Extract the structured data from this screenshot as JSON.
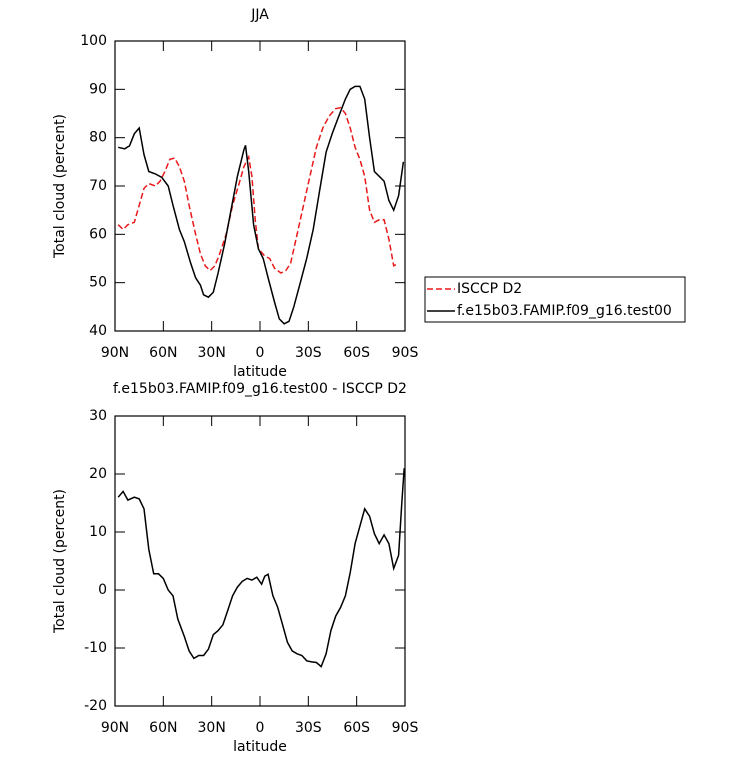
{
  "chart_data": [
    {
      "type": "line",
      "title": "JJA",
      "x_label": "latitude",
      "y_label": "Total cloud (percent)",
      "xlim": [
        90,
        -90
      ],
      "ylim": [
        40,
        100
      ],
      "xticks": [
        {
          "value": 90,
          "label": "90N"
        },
        {
          "value": 60,
          "label": "60N"
        },
        {
          "value": 30,
          "label": "30N"
        },
        0,
        {
          "value": -30,
          "label": "30S"
        },
        {
          "value": -60,
          "label": "60S"
        },
        {
          "value": -90,
          "label": "90S"
        }
      ],
      "yticks": [
        40,
        50,
        60,
        70,
        80,
        90,
        100
      ],
      "legend": "right",
      "series": [
        {
          "name": "ISCCP D2",
          "color": "#e8191b",
          "line_style": "dashed",
          "x": [
            88,
            85,
            82,
            78,
            75,
            72,
            69,
            65,
            62,
            59,
            56,
            53,
            50,
            47,
            44,
            40,
            37,
            34,
            31,
            28,
            25,
            21,
            17,
            13,
            10,
            7,
            5,
            3,
            1,
            -3,
            -6,
            -9,
            -13,
            -16,
            -19,
            -23,
            -27,
            -31,
            -35,
            -39,
            -43,
            -47,
            -50,
            -53,
            -56,
            -59,
            -62,
            -65,
            -68,
            -71,
            -74,
            -77,
            -80,
            -83,
            -86
          ],
          "values": [
            62,
            61,
            62,
            62.5,
            66,
            69.5,
            70.5,
            70,
            71,
            73,
            75.5,
            75.8,
            74,
            71,
            66,
            60,
            56,
            53.5,
            52.5,
            53.5,
            56,
            60,
            66,
            70.5,
            74,
            76,
            72,
            63,
            57,
            55.5,
            55,
            53,
            52,
            52.5,
            54,
            60,
            66,
            72,
            78,
            82,
            84.5,
            86,
            86.2,
            85,
            82,
            78,
            75.5,
            72,
            65,
            62.5,
            63,
            63,
            59,
            53.5,
            54
          ]
        },
        {
          "name": "f.e15b03.FAMIP.f09_g16.test00",
          "color": "#000000",
          "line_style": "solid",
          "x": [
            88,
            84,
            81,
            78,
            75,
            72,
            69,
            65,
            61,
            57,
            54,
            50,
            47,
            43,
            40,
            37,
            35,
            32,
            29,
            26,
            22,
            18,
            14,
            10,
            9,
            7,
            4,
            1,
            -2,
            -5,
            -9,
            -12,
            -15,
            -18,
            -21,
            -25,
            -29,
            -33,
            -37,
            -41,
            -45,
            -49,
            -53,
            -56,
            -59,
            -62,
            -65,
            -68,
            -71,
            -74,
            -77,
            -80,
            -83,
            -86,
            -89
          ],
          "values": [
            78,
            77.7,
            78.3,
            80.8,
            82,
            76.5,
            73,
            72.5,
            71.8,
            70,
            66,
            61,
            58.5,
            54,
            51,
            49.5,
            47.5,
            47,
            48,
            52,
            58,
            65,
            72,
            77.5,
            78.4,
            73,
            62,
            57,
            55,
            51,
            46,
            42.5,
            41.5,
            42,
            45,
            50,
            55,
            61,
            69,
            77,
            81,
            84.5,
            88,
            90,
            90.6,
            90.6,
            88,
            80,
            73,
            72,
            71,
            67,
            65,
            68,
            75
          ]
        }
      ]
    },
    {
      "type": "line",
      "title": "f.e15b03.FAMIP.f09_g16.test00 - ISCCP D2",
      "x_label": "latitude",
      "y_label": "Total cloud (percent)",
      "xlim": [
        90,
        -90
      ],
      "ylim": [
        -20,
        30
      ],
      "xticks": [
        {
          "value": 90,
          "label": "90N"
        },
        {
          "value": 60,
          "label": "60N"
        },
        {
          "value": 30,
          "label": "30N"
        },
        0,
        {
          "value": -30,
          "label": "30S"
        },
        {
          "value": -60,
          "label": "60S"
        },
        {
          "value": -90,
          "label": "90S"
        }
      ],
      "yticks": [
        -20,
        -10,
        0,
        10,
        20,
        30
      ],
      "series": [
        {
          "color": "#000000",
          "line_style": "solid",
          "x": [
            88,
            85,
            82,
            78,
            75,
            72,
            69,
            66,
            63,
            60,
            57,
            54,
            51,
            47,
            44,
            41,
            38,
            35,
            32,
            29,
            26,
            23,
            20,
            17,
            14,
            11,
            8,
            5,
            2,
            -1,
            -3,
            -5,
            -8,
            -11,
            -14,
            -17,
            -20,
            -23,
            -26,
            -29,
            -32,
            -35,
            -38,
            -41,
            -44,
            -47,
            -50,
            -53,
            -56,
            -59,
            -62,
            -65,
            -68,
            -71,
            -74,
            -77,
            -80,
            -83,
            -86,
            -88,
            -89.5
          ],
          "values": [
            16,
            17,
            15.5,
            16,
            15.7,
            14,
            7,
            2.8,
            2.8,
            2,
            0,
            -1,
            -5,
            -8,
            -10.5,
            -11.8,
            -11.3,
            -11.3,
            -10.2,
            -7.7,
            -7,
            -6,
            -3.5,
            -1,
            0.5,
            1.5,
            2,
            1.7,
            2.2,
            1,
            2.4,
            2.7,
            -1,
            -3,
            -6,
            -9,
            -10.5,
            -11,
            -11.3,
            -12.2,
            -12.4,
            -12.5,
            -13.2,
            -11,
            -7,
            -4.5,
            -3,
            -1,
            3,
            8,
            11,
            14,
            12.7,
            9.7,
            8,
            9.5,
            8,
            3.7,
            6,
            15,
            21
          ]
        }
      ]
    }
  ]
}
